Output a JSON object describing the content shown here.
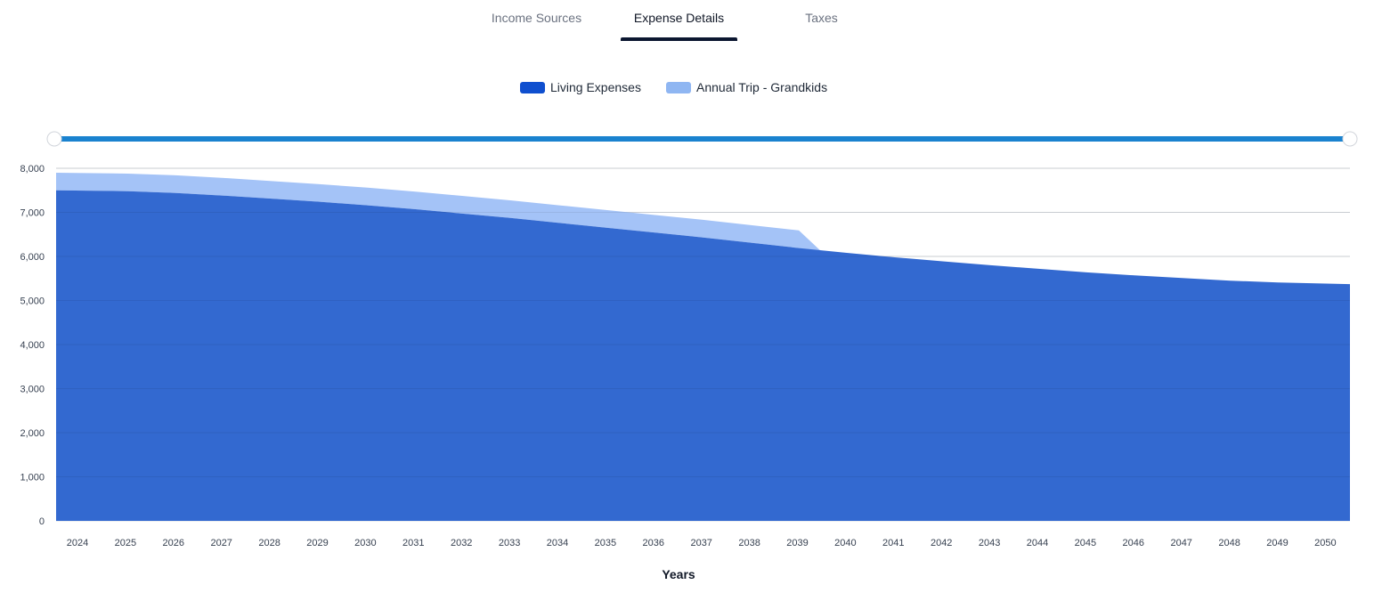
{
  "tabs": [
    {
      "label": "Income Sources",
      "active": false
    },
    {
      "label": "Expense Details",
      "active": true
    },
    {
      "label": "Taxes",
      "active": false
    }
  ],
  "colors": {
    "living": "#3369d0",
    "trip": "#a4c3f7",
    "legend_living": "#0f4fcf",
    "legend_trip": "#8fb6f2",
    "slider": "#1a82cf"
  },
  "slider": {
    "start_year": 2024,
    "end_year": 2050
  },
  "chart_data": {
    "type": "area",
    "title": "",
    "xlabel": "Years",
    "ylabel": "",
    "stacked": true,
    "ylim": [
      0,
      8000
    ],
    "yticks": [
      0,
      1000,
      2000,
      3000,
      4000,
      5000,
      6000,
      7000,
      8000
    ],
    "ytick_labels": [
      "0",
      "1,000",
      "2,000",
      "3,000",
      "4,000",
      "5,000",
      "6,000",
      "7,000",
      "8,000"
    ],
    "grid": true,
    "legend_position": "top-center",
    "categories": [
      "2024",
      "2025",
      "2026",
      "2027",
      "2028",
      "2029",
      "2030",
      "2031",
      "2032",
      "2033",
      "2034",
      "2035",
      "2036",
      "2037",
      "2038",
      "2039",
      "2040",
      "2041",
      "2042",
      "2043",
      "2044",
      "2045",
      "2046",
      "2047",
      "2048",
      "2049",
      "2050"
    ],
    "series": [
      {
        "name": "Living Expenses",
        "values": [
          7500,
          7480,
          7440,
          7380,
          7310,
          7240,
          7160,
          7070,
          6970,
          6870,
          6760,
          6650,
          6540,
          6430,
          6310,
          6190,
          6080,
          5980,
          5890,
          5800,
          5720,
          5640,
          5570,
          5510,
          5450,
          5410,
          5370
        ]
      },
      {
        "name": "Annual Trip - Grandkids",
        "values": [
          400,
          400,
          400,
          400,
          400,
          400,
          400,
          400,
          400,
          400,
          400,
          400,
          400,
          400,
          400,
          400,
          0,
          0,
          0,
          0,
          0,
          0,
          0,
          0,
          0,
          0,
          0
        ]
      }
    ]
  }
}
